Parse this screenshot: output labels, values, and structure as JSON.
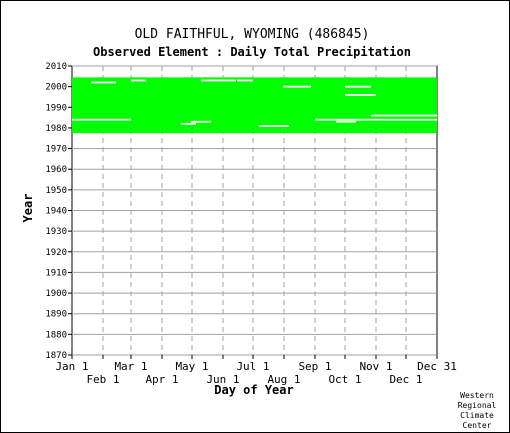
{
  "chart_data": {
    "type": "scatter",
    "title": "OLD FAITHFUL, WYOMING   (486845)",
    "subtitle": "Observed Element : Daily Total Precipitation",
    "xlabel": "Day of Year",
    "ylabel": "Year",
    "xlim": [
      1,
      366
    ],
    "ylim": [
      1870,
      2010
    ],
    "y_ticks": [
      1870,
      1880,
      1890,
      1900,
      1910,
      1920,
      1930,
      1940,
      1950,
      1960,
      1970,
      1980,
      1990,
      2000,
      2010
    ],
    "x_ticks_top": [
      {
        "label": "Jan 1",
        "day": 1
      },
      {
        "label": "Mar 1",
        "day": 60
      },
      {
        "label": "May 1",
        "day": 121
      },
      {
        "label": "Jul 1",
        "day": 182
      },
      {
        "label": "Sep 1",
        "day": 244
      },
      {
        "label": "Nov 1",
        "day": 305
      },
      {
        "label": "Dec 31",
        "day": 366
      }
    ],
    "x_ticks_bottom": [
      {
        "label": "Feb 1",
        "day": 32
      },
      {
        "label": "Apr 1",
        "day": 91
      },
      {
        "label": "Jun 1",
        "day": 152
      },
      {
        "label": "Aug 1",
        "day": 213
      },
      {
        "label": "Oct 1",
        "day": 274
      },
      {
        "label": "Dec 1",
        "day": 335
      }
    ],
    "grid": true,
    "series_color": "#00ff00",
    "data_coverage": {
      "start_year": 1978,
      "end_year": 2004,
      "day_start": 1,
      "day_end": 366
    },
    "missing_segments": [
      {
        "year": 1984,
        "day_start": 1,
        "day_end": 60
      },
      {
        "year": 1984,
        "day_start": 244,
        "day_end": 366
      },
      {
        "year": 1983,
        "day_start": 120,
        "day_end": 140
      },
      {
        "year": 1982,
        "day_start": 110,
        "day_end": 125
      },
      {
        "year": 1983,
        "day_start": 265,
        "day_end": 285
      },
      {
        "year": 1981,
        "day_start": 188,
        "day_end": 218
      },
      {
        "year": 2003,
        "day_start": 130,
        "day_end": 165
      },
      {
        "year": 2003,
        "day_start": 166,
        "day_end": 182
      },
      {
        "year": 2000,
        "day_start": 212,
        "day_end": 240
      },
      {
        "year": 2000,
        "day_start": 274,
        "day_end": 300
      },
      {
        "year": 1996,
        "day_start": 274,
        "day_end": 305
      },
      {
        "year": 2002,
        "day_start": 20,
        "day_end": 45
      },
      {
        "year": 2003,
        "day_start": 60,
        "day_end": 75
      },
      {
        "year": 1986,
        "day_start": 300,
        "day_end": 366
      }
    ]
  },
  "credit": [
    "Western",
    "Regional",
    "Climate",
    "Center"
  ]
}
